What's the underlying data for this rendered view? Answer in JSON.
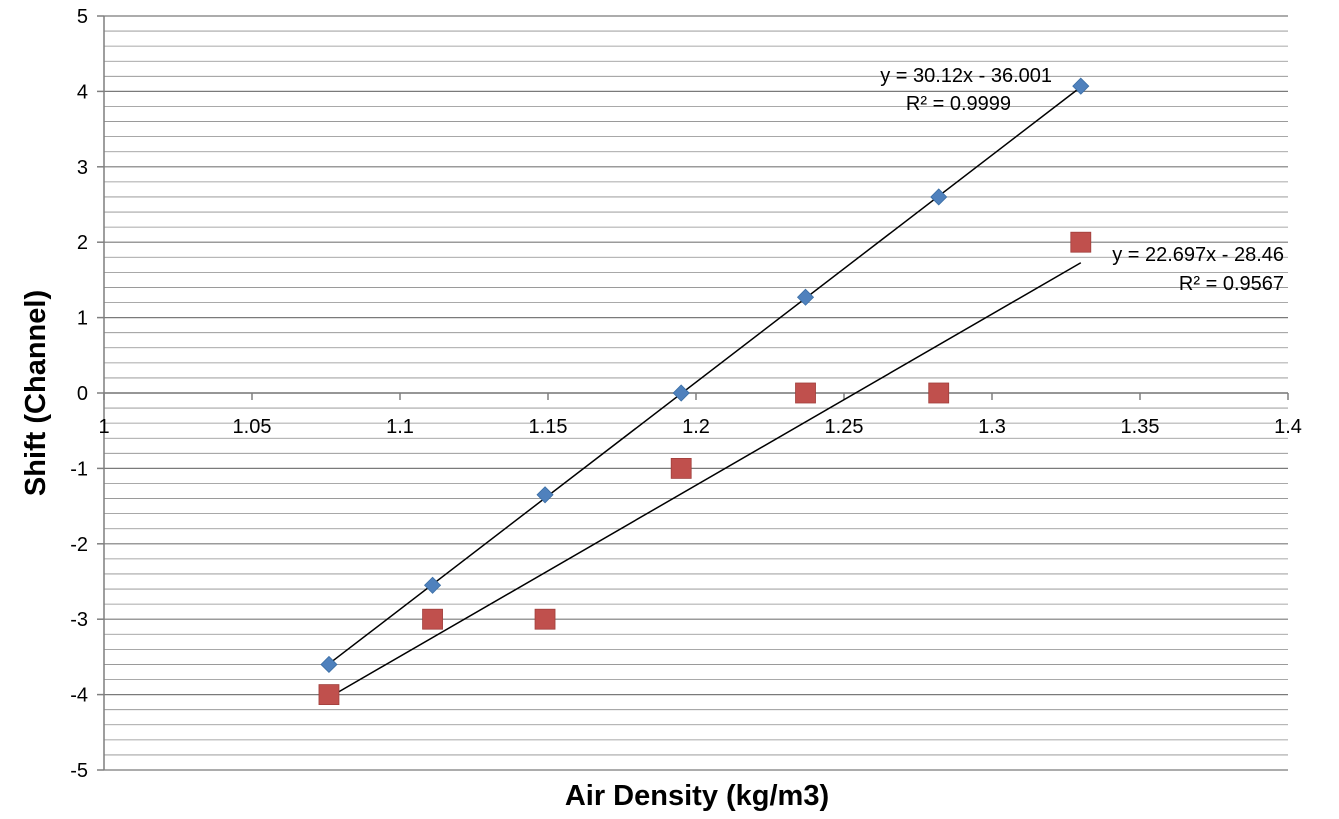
{
  "chart_data": {
    "type": "scatter",
    "title": "",
    "xlabel": "Air Density (kg/m3)",
    "ylabel": "Shift (Channel)",
    "xlim": [
      1,
      1.4
    ],
    "ylim": [
      -5,
      5
    ],
    "x_ticks": [
      "1",
      "1.05",
      "1.1",
      "1.15",
      "1.2",
      "1.25",
      "1.3",
      "1.35",
      "1.4"
    ],
    "y_ticks": [
      "5",
      "4",
      "3",
      "2",
      "1",
      "0",
      "-1",
      "-2",
      "-3",
      "-4",
      "-5"
    ],
    "grid": "horizontal major and minor",
    "legend": "none",
    "series": [
      {
        "marker": "diamond",
        "color": "#4F81BD",
        "x": [
          1.076,
          1.111,
          1.149,
          1.195,
          1.237,
          1.282,
          1.33
        ],
        "y": [
          -3.6,
          -2.55,
          -1.35,
          0.0,
          1.27,
          2.6,
          4.07
        ],
        "trendline": {
          "slope": 30.12,
          "intercept": -36.001,
          "equation": "y = 30.12x - 36.001",
          "r_squared": "R² = 0.9999"
        }
      },
      {
        "marker": "square",
        "color": "#C0504D",
        "x": [
          1.076,
          1.111,
          1.149,
          1.195,
          1.237,
          1.282,
          1.33
        ],
        "y": [
          -4,
          -3,
          -3,
          -1,
          0,
          0,
          2
        ],
        "trendline": {
          "slope": 22.697,
          "intercept": -28.46,
          "equation": "y = 22.697x - 28.46",
          "r_squared": "R² = 0.9567"
        }
      }
    ]
  }
}
